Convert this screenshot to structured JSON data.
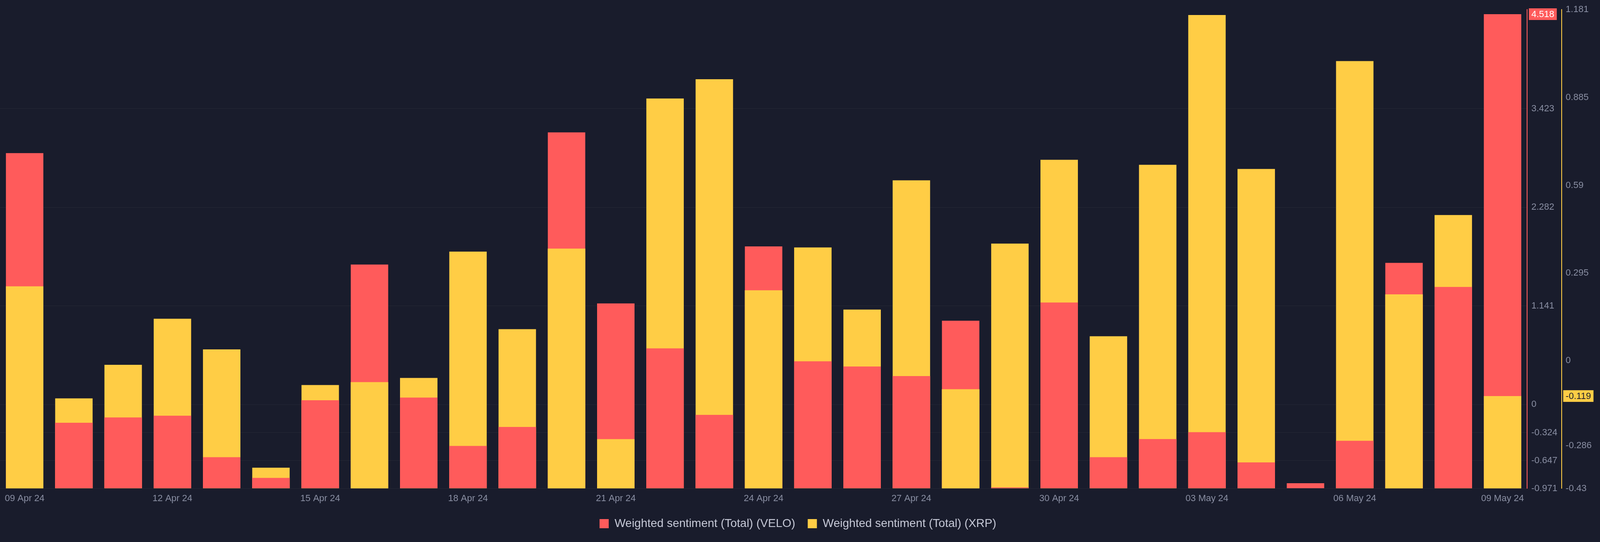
{
  "chart_data": {
    "type": "bar",
    "categories": [
      "09 Apr 24",
      null,
      null,
      "12 Apr 24",
      null,
      null,
      "15 Apr 24",
      null,
      null,
      "18 Apr 24",
      null,
      null,
      "21 Apr 24",
      null,
      null,
      "24 Apr 24",
      null,
      null,
      "27 Apr 24",
      null,
      null,
      "30 Apr 24",
      null,
      null,
      "03 May 24",
      null,
      null,
      "06 May 24",
      null,
      null,
      "09 May 24"
    ],
    "series": [
      {
        "name": "Weighted sentiment (Total) (VELO)",
        "color": "#ff5b5b",
        "axis": "y",
        "values": [
          2.91,
          -0.21,
          -0.15,
          -0.13,
          -0.61,
          -0.85,
          0.05,
          1.62,
          0.08,
          -0.48,
          -0.26,
          3.15,
          1.17,
          0.65,
          -0.12,
          1.83,
          0.5,
          0.44,
          0.33,
          0.97,
          -0.96,
          1.18,
          -0.61,
          -0.4,
          -0.32,
          -0.67,
          -0.91,
          -0.42,
          1.64,
          1.36,
          4.518
        ]
      },
      {
        "name": "Weighted sentiment (Total) (XRP)",
        "color": "#ffcd45",
        "axis": "y2",
        "values": [
          0.25,
          -0.127,
          -0.014,
          0.141,
          0.038,
          -0.36,
          -0.082,
          -0.072,
          -0.058,
          0.367,
          0.106,
          0.377,
          -0.264,
          0.882,
          0.947,
          0.237,
          0.381,
          0.172,
          0.607,
          -0.096,
          0.394,
          0.676,
          0.082,
          0.659,
          1.163,
          0.645,
          -0.43,
          1.008,
          0.223,
          0.49,
          -0.119
        ]
      }
    ],
    "ylim": [
      -0.971,
      4.57
    ],
    "yticks": [
      -0.971,
      -0.647,
      -0.324,
      0,
      1.141,
      2.282,
      3.423
    ],
    "y2lim": [
      -0.43,
      1.181
    ],
    "y2ticks": [
      -0.43,
      -0.286,
      0,
      0.295,
      0.59,
      0.885,
      1.181
    ],
    "grid": true,
    "legend": "bottom"
  }
}
